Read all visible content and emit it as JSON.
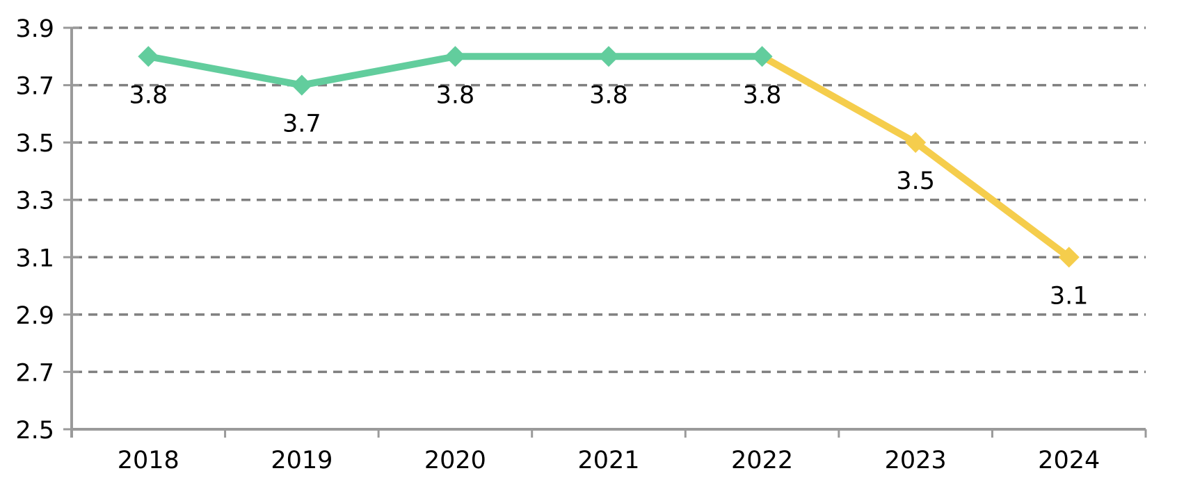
{
  "chart_data": {
    "type": "line",
    "title": "",
    "xlabel": "",
    "ylabel": "",
    "categories": [
      "2018",
      "2019",
      "2020",
      "2021",
      "2022",
      "2023",
      "2024"
    ],
    "values": [
      3.8,
      3.7,
      3.8,
      3.8,
      3.8,
      3.5,
      3.1
    ],
    "data_labels": [
      "3.8",
      "3.7",
      "3.8",
      "3.8",
      "3.8",
      "3.5",
      "3.1"
    ],
    "segments": [
      {
        "name": "green-segment",
        "color": "#62CD9D",
        "from_index": 0,
        "to_index": 4
      },
      {
        "name": "yellow-segment",
        "color": "#F5CD4C",
        "from_index": 4,
        "to_index": 6
      }
    ],
    "marker_colors": [
      "#62CD9D",
      "#62CD9D",
      "#62CD9D",
      "#62CD9D",
      "#62CD9D",
      "#F5CD4C",
      "#F5CD4C"
    ],
    "marker": "diamond",
    "ylim": [
      2.5,
      3.9
    ],
    "yticks": [
      "3.9",
      "3.7",
      "3.5",
      "3.3",
      "3.1",
      "2.9",
      "2.7",
      "2.5"
    ],
    "grid": "horizontal-dashed",
    "legend": "none",
    "colors": {
      "grid": "#808080",
      "axis": "#9A9A9A",
      "text": "#000000",
      "background": "#FFFFFF"
    }
  }
}
